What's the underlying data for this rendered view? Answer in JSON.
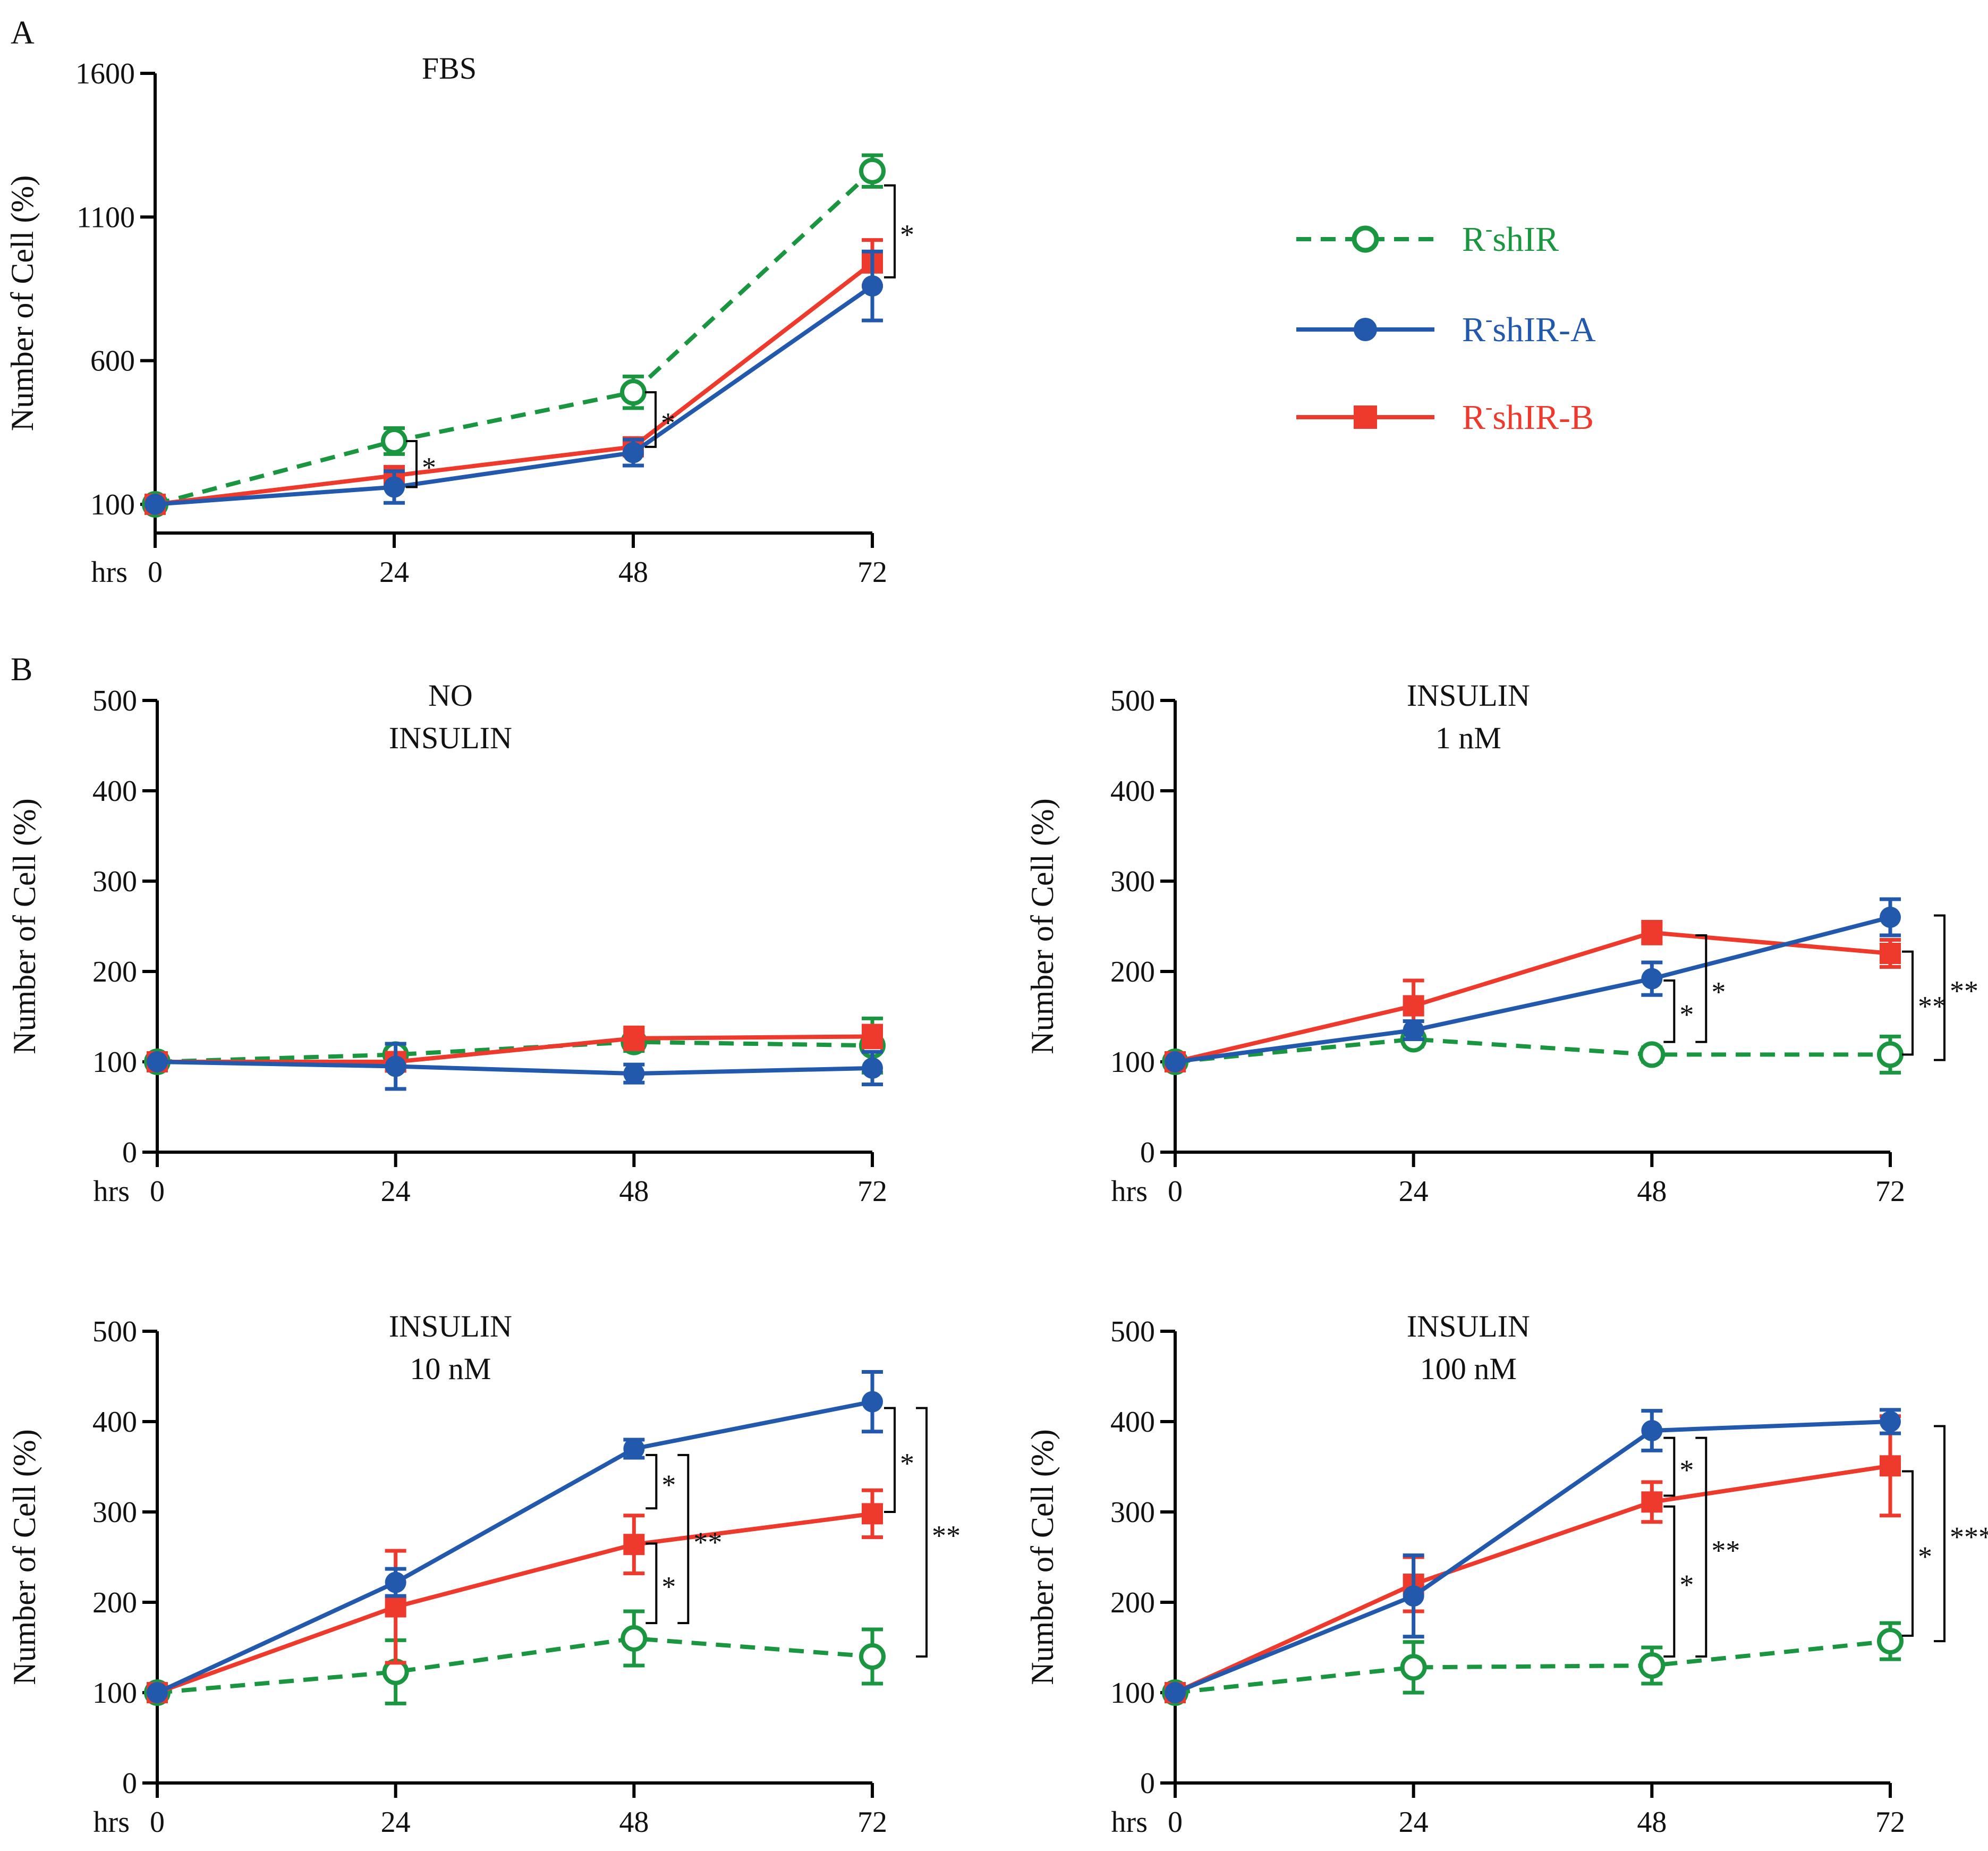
{
  "figure": {
    "panel_labels": [
      "A",
      "B"
    ],
    "legend": [
      {
        "base": "R",
        "sup": "-",
        "rest": "shIR",
        "color": "#1b9640",
        "marker": "open-circle",
        "dash": true
      },
      {
        "base": "R",
        "sup": "-",
        "rest": "shIR-A",
        "color": "#2259ad",
        "marker": "filled-circle",
        "dash": false
      },
      {
        "base": "R",
        "sup": "-",
        "rest": "shIR-B",
        "color": "#ee3a2c",
        "marker": "filled-square",
        "dash": false
      }
    ]
  },
  "chart_data": [
    {
      "id": "fbs",
      "type": "line",
      "panel": "A",
      "title_lines": [
        "FBS"
      ],
      "xlabel": "hrs",
      "ylabel": "Number of Cell (%)",
      "x": [
        0,
        24,
        48,
        72
      ],
      "xticks": [
        "0",
        "24",
        "48",
        "72"
      ],
      "ylim": [
        0,
        1600
      ],
      "yticks": [
        100,
        600,
        1100,
        1600
      ],
      "series": [
        {
          "name": "R-shIR",
          "values": [
            100,
            320,
            490,
            1260
          ],
          "errors": [
            0,
            45,
            55,
            55
          ]
        },
        {
          "name": "R-shIR-A",
          "values": [
            100,
            160,
            280,
            860
          ],
          "errors": [
            0,
            55,
            45,
            120
          ]
        },
        {
          "name": "R-shIR-B",
          "values": [
            100,
            200,
            300,
            940
          ],
          "errors": [
            0,
            30,
            30,
            80
          ]
        }
      ],
      "annotations": [
        {
          "label": "*",
          "x": 24,
          "y1": 320,
          "y2": 160,
          "rank": 0
        },
        {
          "label": "*",
          "x": 48,
          "y1": 490,
          "y2": 300,
          "rank": 0
        },
        {
          "label": "*",
          "x": 72,
          "y1": 1210,
          "y2": 890,
          "rank": 0
        }
      ]
    },
    {
      "id": "no-insulin",
      "type": "line",
      "panel": "B",
      "title_lines": [
        "NO",
        "INSULIN"
      ],
      "xlabel": "hrs",
      "ylabel": "Number of Cell (%)",
      "x": [
        0,
        24,
        48,
        72
      ],
      "xticks": [
        "0",
        "24",
        "48",
        "72"
      ],
      "ylim": [
        0,
        500
      ],
      "yticks": [
        0,
        100,
        200,
        300,
        400,
        500
      ],
      "series": [
        {
          "name": "R-shIR",
          "values": [
            100,
            108,
            122,
            118
          ],
          "errors": [
            0,
            12,
            10,
            30
          ]
        },
        {
          "name": "R-shIR-A",
          "values": [
            100,
            95,
            87,
            93
          ],
          "errors": [
            0,
            25,
            10,
            18
          ]
        },
        {
          "name": "R-shIR-B",
          "values": [
            100,
            100,
            126,
            128
          ],
          "errors": [
            0,
            10,
            12,
            12
          ]
        }
      ],
      "annotations": []
    },
    {
      "id": "insulin-1",
      "type": "line",
      "panel": "B",
      "title_lines": [
        "INSULIN",
        "1 nM"
      ],
      "xlabel": "hrs",
      "ylabel": "Number of Cell (%)",
      "x": [
        0,
        24,
        48,
        72
      ],
      "xticks": [
        "0",
        "24",
        "48",
        "72"
      ],
      "ylim": [
        0,
        500
      ],
      "yticks": [
        0,
        100,
        200,
        300,
        400,
        500
      ],
      "series": [
        {
          "name": "R-shIR",
          "values": [
            100,
            125,
            108,
            108
          ],
          "errors": [
            0,
            8,
            8,
            20
          ]
        },
        {
          "name": "R-shIR-A",
          "values": [
            100,
            135,
            192,
            260
          ],
          "errors": [
            0,
            10,
            18,
            20
          ]
        },
        {
          "name": "R-shIR-B",
          "values": [
            100,
            162,
            243,
            220
          ],
          "errors": [
            0,
            28,
            12,
            15
          ]
        }
      ],
      "annotations": [
        {
          "label": "*",
          "x": 48,
          "y1": 190,
          "y2": 122,
          "rank": 0
        },
        {
          "label": "*",
          "x": 48,
          "y1": 240,
          "y2": 122,
          "rank": 1
        },
        {
          "label": "**",
          "x": 72,
          "y1": 222,
          "y2": 108,
          "rank": 0
        },
        {
          "label": "**",
          "x": 72,
          "y1": 262,
          "y2": 102,
          "rank": 1
        }
      ]
    },
    {
      "id": "insulin-10",
      "type": "line",
      "panel": "B",
      "title_lines": [
        "INSULIN",
        "10 nM"
      ],
      "xlabel": "hrs",
      "ylabel": "Number of Cell (%)",
      "x": [
        0,
        24,
        48,
        72
      ],
      "xticks": [
        "0",
        "24",
        "48",
        "72"
      ],
      "ylim": [
        0,
        500
      ],
      "yticks": [
        0,
        100,
        200,
        300,
        400,
        500
      ],
      "series": [
        {
          "name": "R-shIR",
          "values": [
            100,
            123,
            160,
            140
          ],
          "errors": [
            0,
            35,
            30,
            30
          ]
        },
        {
          "name": "R-shIR-A",
          "values": [
            100,
            222,
            370,
            422
          ],
          "errors": [
            0,
            15,
            10,
            33
          ]
        },
        {
          "name": "R-shIR-B",
          "values": [
            100,
            195,
            264,
            298
          ],
          "errors": [
            0,
            62,
            32,
            26
          ]
        }
      ],
      "annotations": [
        {
          "label": "*",
          "x": 48,
          "y1": 363,
          "y2": 304,
          "rank": 0
        },
        {
          "label": "*",
          "x": 48,
          "y1": 265,
          "y2": 177,
          "rank": 0
        },
        {
          "label": "**",
          "x": 48,
          "y1": 363,
          "y2": 177,
          "rank": 1
        },
        {
          "label": "*",
          "x": 72,
          "y1": 415,
          "y2": 300,
          "rank": 0
        },
        {
          "label": "**",
          "x": 72,
          "y1": 415,
          "y2": 140,
          "rank": 1
        }
      ]
    },
    {
      "id": "insulin-100",
      "type": "line",
      "panel": "B",
      "title_lines": [
        "INSULIN",
        "100 nM"
      ],
      "xlabel": "hrs",
      "ylabel": "Number of Cell (%)",
      "x": [
        0,
        24,
        48,
        72
      ],
      "xticks": [
        "0",
        "24",
        "48",
        "72"
      ],
      "ylim": [
        0,
        500
      ],
      "yticks": [
        0,
        100,
        200,
        300,
        400,
        500
      ],
      "series": [
        {
          "name": "R-shIR",
          "values": [
            100,
            128,
            130,
            157
          ],
          "errors": [
            0,
            28,
            20,
            20
          ]
        },
        {
          "name": "R-shIR-A",
          "values": [
            100,
            207,
            390,
            400
          ],
          "errors": [
            0,
            45,
            22,
            13
          ]
        },
        {
          "name": "R-shIR-B",
          "values": [
            100,
            220,
            311,
            351
          ],
          "errors": [
            0,
            30,
            22,
            55
          ]
        }
      ],
      "annotations": [
        {
          "label": "*",
          "x": 48,
          "y1": 382,
          "y2": 318,
          "rank": 0
        },
        {
          "label": "*",
          "x": 48,
          "y1": 306,
          "y2": 140,
          "rank": 0
        },
        {
          "label": "**",
          "x": 48,
          "y1": 382,
          "y2": 140,
          "rank": 1
        },
        {
          "label": "*",
          "x": 72,
          "y1": 345,
          "y2": 163,
          "rank": 0
        },
        {
          "label": "***",
          "x": 72,
          "y1": 395,
          "y2": 157,
          "rank": 1
        }
      ]
    }
  ]
}
